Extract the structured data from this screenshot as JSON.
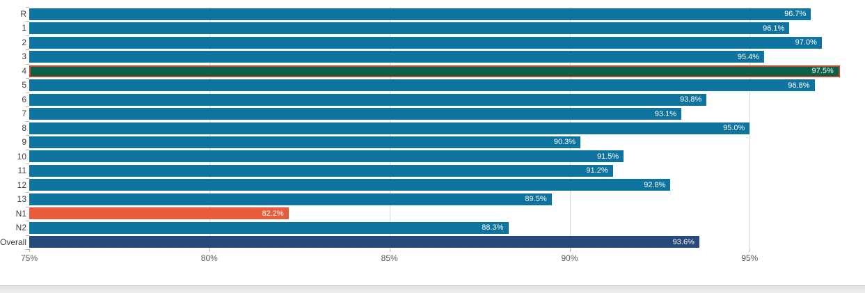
{
  "chart_data": {
    "type": "bar",
    "orientation": "horizontal",
    "title": "",
    "xlabel": "",
    "ylabel": "",
    "xlim": [
      75,
      98.2
    ],
    "grid": "vertical",
    "legend": null,
    "x_ticks": [
      {
        "value": 75,
        "label": "75%"
      },
      {
        "value": 80,
        "label": "80%"
      },
      {
        "value": 85,
        "label": "85%"
      },
      {
        "value": 90,
        "label": "90%"
      },
      {
        "value": 95,
        "label": "95%"
      }
    ],
    "gridline_values": [
      80,
      85,
      90,
      95
    ],
    "bars": [
      {
        "category": "R",
        "value": 96.7,
        "label": "96.7%",
        "style": "default"
      },
      {
        "category": "1",
        "value": 96.1,
        "label": "96.1%",
        "style": "default"
      },
      {
        "category": "2",
        "value": 97.0,
        "label": "97.0%",
        "style": "default"
      },
      {
        "category": "3",
        "value": 95.4,
        "label": "95.4%",
        "style": "default"
      },
      {
        "category": "4",
        "value": 97.5,
        "label": "97.5%",
        "style": "highlight"
      },
      {
        "category": "5",
        "value": 96.8,
        "label": "96.8%",
        "style": "default"
      },
      {
        "category": "6",
        "value": 93.8,
        "label": "93.8%",
        "style": "default"
      },
      {
        "category": "7",
        "value": 93.1,
        "label": "93.1%",
        "style": "default"
      },
      {
        "category": "8",
        "value": 95.0,
        "label": "95.0%",
        "style": "default"
      },
      {
        "category": "9",
        "value": 90.3,
        "label": "90.3%",
        "style": "default"
      },
      {
        "category": "10",
        "value": 91.5,
        "label": "91.5%",
        "style": "default"
      },
      {
        "category": "11",
        "value": 91.2,
        "label": "91.2%",
        "style": "default"
      },
      {
        "category": "12",
        "value": 92.8,
        "label": "92.8%",
        "style": "default"
      },
      {
        "category": "13",
        "value": 89.5,
        "label": "89.5%",
        "style": "default"
      },
      {
        "category": "N1",
        "value": 82.2,
        "label": "82.2%",
        "style": "negative"
      },
      {
        "category": "N2",
        "value": 88.3,
        "label": "88.3%",
        "style": "default"
      },
      {
        "category": "Overall",
        "value": 93.6,
        "label": "93.6%",
        "style": "overall"
      }
    ],
    "styles": {
      "default": {
        "fill": "#0e739f"
      },
      "highlight": {
        "fill": "#0a6147",
        "border": "#c24a2e"
      },
      "negative": {
        "fill": "#e95c3b"
      },
      "overall": {
        "fill": "#27497b"
      }
    },
    "colors": {
      "value_label": "#ffffff",
      "category_label": "#404040",
      "axis_tick_label": "#595959",
      "gridline": "#d9d9d9",
      "axis_tick_mark": "#b3b3b3"
    }
  },
  "ui": {
    "bottom_scrollbar": "horizontal-scrollbar-track"
  }
}
